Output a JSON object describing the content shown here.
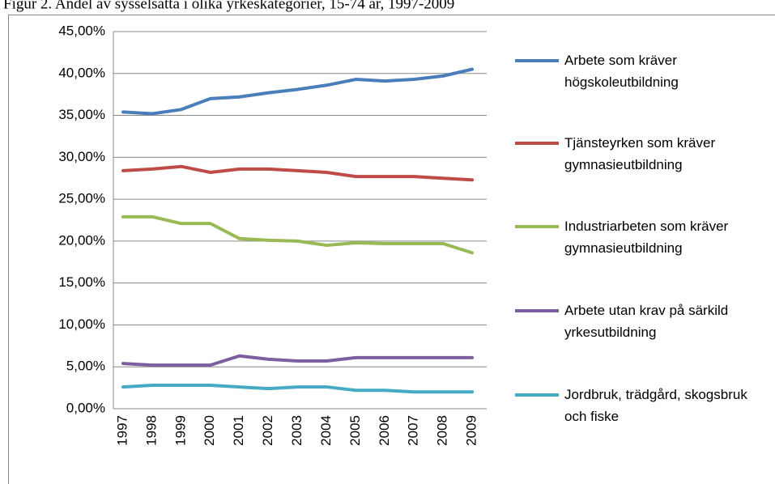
{
  "chart_data": {
    "type": "line",
    "title": "Figur 2. Andel av sysselsatta i olika yrkeskategorier, 15-74 år, 1997-2009",
    "categories": [
      "1997",
      "1998",
      "1999",
      "2000",
      "2001",
      "2002",
      "2003",
      "2004",
      "2005",
      "2006",
      "2007",
      "2008",
      "2009"
    ],
    "series": [
      {
        "name": "Arbete som kräver högskoleutbildning",
        "color": "#4a7ebb",
        "values": [
          35.4,
          35.2,
          35.7,
          37.0,
          37.2,
          37.7,
          38.1,
          38.6,
          39.3,
          39.1,
          39.3,
          39.7,
          40.5
        ]
      },
      {
        "name": "Tjänsteyrken som kräver gymnasieutbildning",
        "color": "#be4b48",
        "values": [
          28.4,
          28.6,
          28.9,
          28.2,
          28.6,
          28.6,
          28.4,
          28.2,
          27.7,
          27.7,
          27.7,
          27.5,
          27.3
        ]
      },
      {
        "name": "Industriarbeten som kräver gymnasieutbildning",
        "color": "#98b954",
        "values": [
          22.9,
          22.9,
          22.1,
          22.1,
          20.3,
          20.1,
          20.0,
          19.5,
          19.8,
          19.7,
          19.7,
          19.7,
          18.6
        ]
      },
      {
        "name": "Arbete utan krav på särkild yrkesutbildning",
        "color": "#7d5fa0",
        "values": [
          5.4,
          5.2,
          5.2,
          5.2,
          6.3,
          5.9,
          5.7,
          5.7,
          6.1,
          6.1,
          6.1,
          6.1,
          6.1
        ]
      },
      {
        "name": "Jordbruk, trädgård, skogsbruk och fiske",
        "color": "#46aac5",
        "values": [
          2.6,
          2.8,
          2.8,
          2.8,
          2.6,
          2.4,
          2.6,
          2.6,
          2.2,
          2.2,
          2.0,
          2.0,
          2.0
        ]
      }
    ],
    "ylim": [
      0,
      45
    ],
    "yticks": [
      {
        "value": 0,
        "label": "0,00%"
      },
      {
        "value": 5,
        "label": "5,00%"
      },
      {
        "value": 10,
        "label": "10,00%"
      },
      {
        "value": 15,
        "label": "15,00%"
      },
      {
        "value": 20,
        "label": "20,00%"
      },
      {
        "value": 25,
        "label": "25,00%"
      },
      {
        "value": 30,
        "label": "30,00%"
      },
      {
        "value": 35,
        "label": "35,00%"
      },
      {
        "value": 40,
        "label": "40,00%"
      },
      {
        "value": 45,
        "label": "45,00%"
      }
    ],
    "grid": true,
    "legend": "right"
  }
}
